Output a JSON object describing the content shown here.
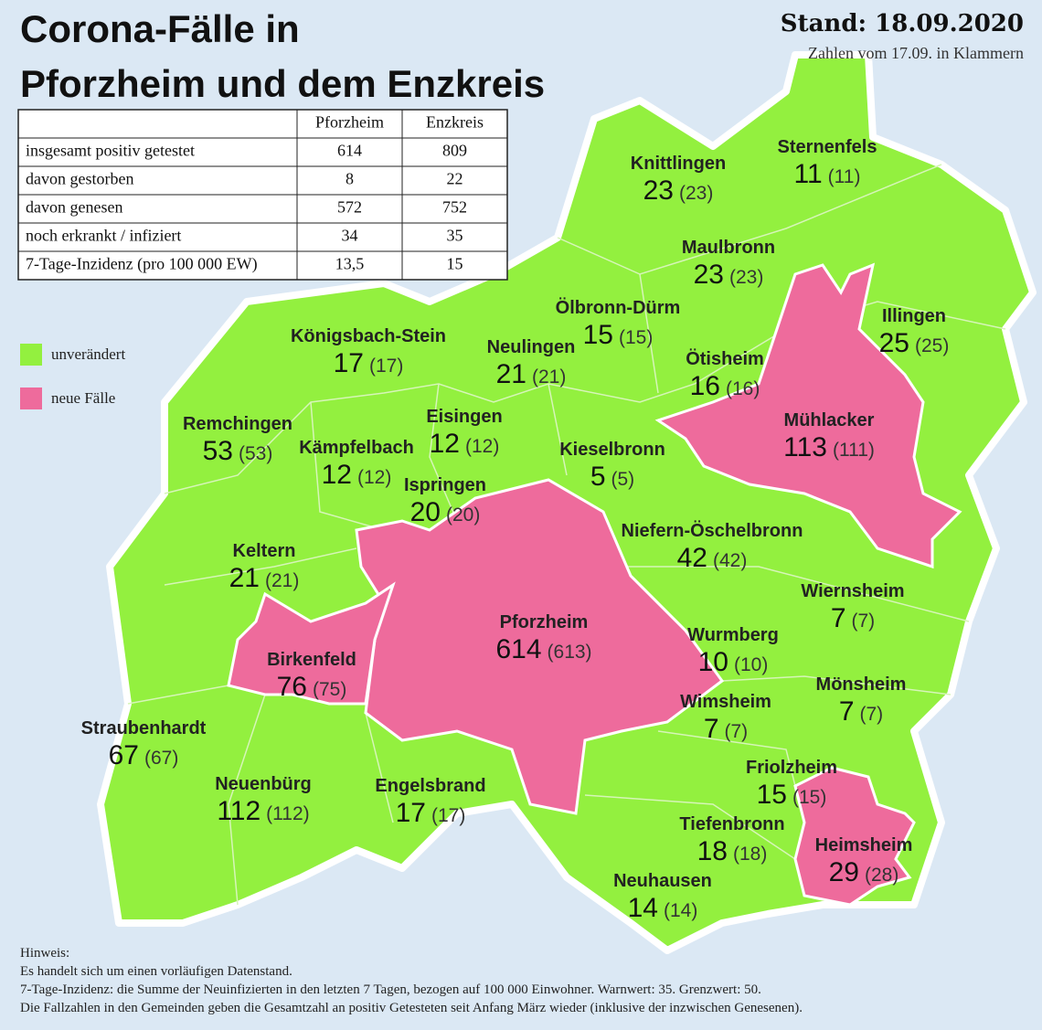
{
  "header": {
    "title": [
      "Corona-Fälle in",
      "Pforzheim und dem Enzkreis"
    ],
    "date": "Stand: 18.09.2020",
    "note": "Zahlen vom 17.09. in Klammern"
  },
  "table": {
    "columns": [
      "Pforzheim",
      "Enzkreis"
    ],
    "rows": [
      [
        "insgesamt positiv getestet",
        614,
        809
      ],
      [
        "davon gestorben",
        8,
        22
      ],
      [
        "davon genesen",
        572,
        752
      ],
      [
        "noch erkrankt / infiziert",
        34,
        35
      ],
      [
        "7-Tage-Inzidenz (pro 100 000 EW)",
        "13,5",
        15
      ]
    ]
  },
  "legend": [
    "unverändert",
    "neue Fälle"
  ],
  "municipalities": [
    {
      "name": "Knittlingen",
      "cases": 23,
      "previous": "(23)"
    },
    {
      "name": "Sternenfels",
      "cases": 11,
      "previous": "(11)"
    },
    {
      "name": "Maulbronn",
      "cases": 23,
      "previous": "(23)"
    },
    {
      "name": "Ölbronn-Dürm",
      "cases": 15,
      "previous": "(15)"
    },
    {
      "name": "Illingen",
      "cases": 25,
      "previous": "(25)"
    },
    {
      "name": "Königsbach-Stein",
      "cases": 17,
      "previous": "(17)"
    },
    {
      "name": "Neulingen",
      "cases": 21,
      "previous": "(21)"
    },
    {
      "name": "Ötisheim",
      "cases": 16,
      "previous": "(16)"
    },
    {
      "name": "Remchingen",
      "cases": 53,
      "previous": "(53)"
    },
    {
      "name": "Eisingen",
      "cases": 12,
      "previous": "(12)"
    },
    {
      "name": "Mühlacker",
      "cases": 113,
      "previous": "(111)"
    },
    {
      "name": "Kämpfelbach",
      "cases": 12,
      "previous": "(12)"
    },
    {
      "name": "Kieselbronn",
      "cases": 5,
      "previous": "(5)"
    },
    {
      "name": "Ispringen",
      "cases": 20,
      "previous": "(20)"
    },
    {
      "name": "Niefern-Öschelbronn",
      "cases": 42,
      "previous": "(42)"
    },
    {
      "name": "Keltern",
      "cases": 21,
      "previous": "(21)"
    },
    {
      "name": "Wiernsheim",
      "cases": 7,
      "previous": "(7)"
    },
    {
      "name": "Pforzheim",
      "cases": 614,
      "previous": "(613)"
    },
    {
      "name": "Wurmberg",
      "cases": 10,
      "previous": "(10)"
    },
    {
      "name": "Birkenfeld",
      "cases": 76,
      "previous": "(75)"
    },
    {
      "name": "Mönsheim",
      "cases": 7,
      "previous": "(7)"
    },
    {
      "name": "Wimsheim",
      "cases": 7,
      "previous": "(7)"
    },
    {
      "name": "Straubenhardt",
      "cases": 67,
      "previous": "(67)"
    },
    {
      "name": "Neuenbürg",
      "cases": 112,
      "previous": "(112)"
    },
    {
      "name": "Engelsbrand",
      "cases": 17,
      "previous": "(17)"
    },
    {
      "name": "Friolzheim",
      "cases": 15,
      "previous": "(15)"
    },
    {
      "name": "Tiefenbronn",
      "cases": 18,
      "previous": "(18)"
    },
    {
      "name": "Heimsheim",
      "cases": 29,
      "previous": "(28)"
    },
    {
      "name": "Neuhausen",
      "cases": 14,
      "previous": "(14)"
    }
  ],
  "footnote": [
    "Hinweis:",
    "Es handelt sich um einen vorläufigen Datenstand.",
    "7-Tage-Inzidenz: die Summe der Neuinfizierten in den letzten 7 Tagen, bezogen auf 100 000 Einwohner. Warnwert: 35. Grenzwert: 50.",
    "Die Fallzahlen in den Gemeinden geben die Gesamtzahl an positiv Getesteten seit Anfang März wieder (inklusive der inzwischen Genesenen)."
  ]
}
